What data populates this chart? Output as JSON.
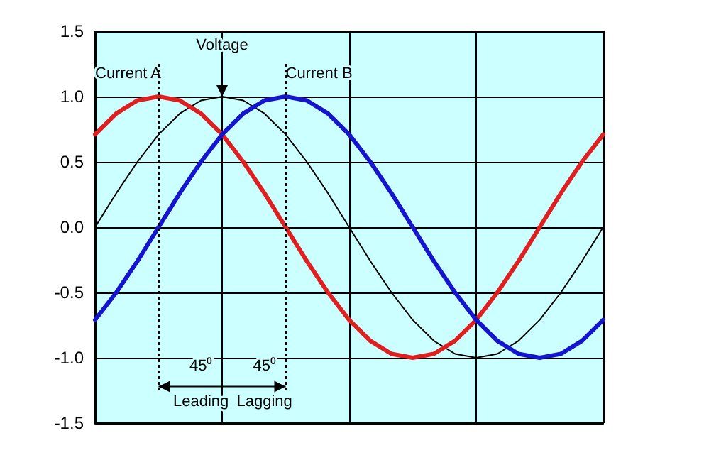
{
  "chart_data": {
    "type": "line",
    "categories": [
      null,
      null,
      null,
      null,
      null,
      null,
      null,
      null,
      null,
      null,
      null,
      null,
      null,
      null,
      null,
      null,
      null,
      null,
      null,
      null,
      null,
      null,
      null,
      null,
      null
    ],
    "series": [
      {
        "name": "Voltage",
        "color": "#000000",
        "values": [
          0,
          0.26,
          0.5,
          0.71,
          0.87,
          0.97,
          1,
          0.97,
          0.87,
          0.71,
          0.5,
          0.26,
          0,
          -0.26,
          -0.5,
          -0.71,
          -0.87,
          -0.97,
          -1,
          -0.97,
          -0.87,
          -0.71,
          -0.5,
          -0.26,
          0
        ]
      },
      {
        "name": "Current A",
        "color": "#e02020",
        "values": [
          0.71,
          0.87,
          0.97,
          1,
          0.97,
          0.87,
          0.71,
          0.5,
          0.26,
          0,
          -0.26,
          -0.5,
          -0.71,
          -0.87,
          -0.97,
          -1,
          -0.97,
          -0.87,
          -0.71,
          -0.5,
          -0.26,
          0,
          0.26,
          0.5,
          0.71
        ]
      },
      {
        "name": "Current B",
        "color": "#1515d0",
        "values": [
          -0.71,
          -0.5,
          -0.26,
          0,
          0.26,
          0.5,
          0.71,
          0.87,
          0.97,
          1,
          0.97,
          0.87,
          0.71,
          0.5,
          0.26,
          0,
          -0.26,
          -0.5,
          -0.71,
          -0.87,
          -0.97,
          -1,
          -0.97,
          -0.87,
          -0.71
        ]
      }
    ],
    "ylim": [
      -1.5,
      1.5
    ],
    "yticks": [
      {
        "value": -1.5,
        "label": "-1.5"
      },
      {
        "value": -1,
        "label": "-1.0"
      },
      {
        "value": -0.5,
        "label": "-0.5"
      },
      {
        "value": 0,
        "label": "0.0"
      },
      {
        "value": 0.5,
        "label": "0.5"
      },
      {
        "value": 1,
        "label": "1.0"
      },
      {
        "value": 1.5,
        "label": "1.5"
      }
    ],
    "tick_labels": "y",
    "grid": true,
    "marker": "none",
    "annotations": [
      "45⁰",
      "45⁰",
      "Leading",
      "Lagging"
    ]
  }
}
